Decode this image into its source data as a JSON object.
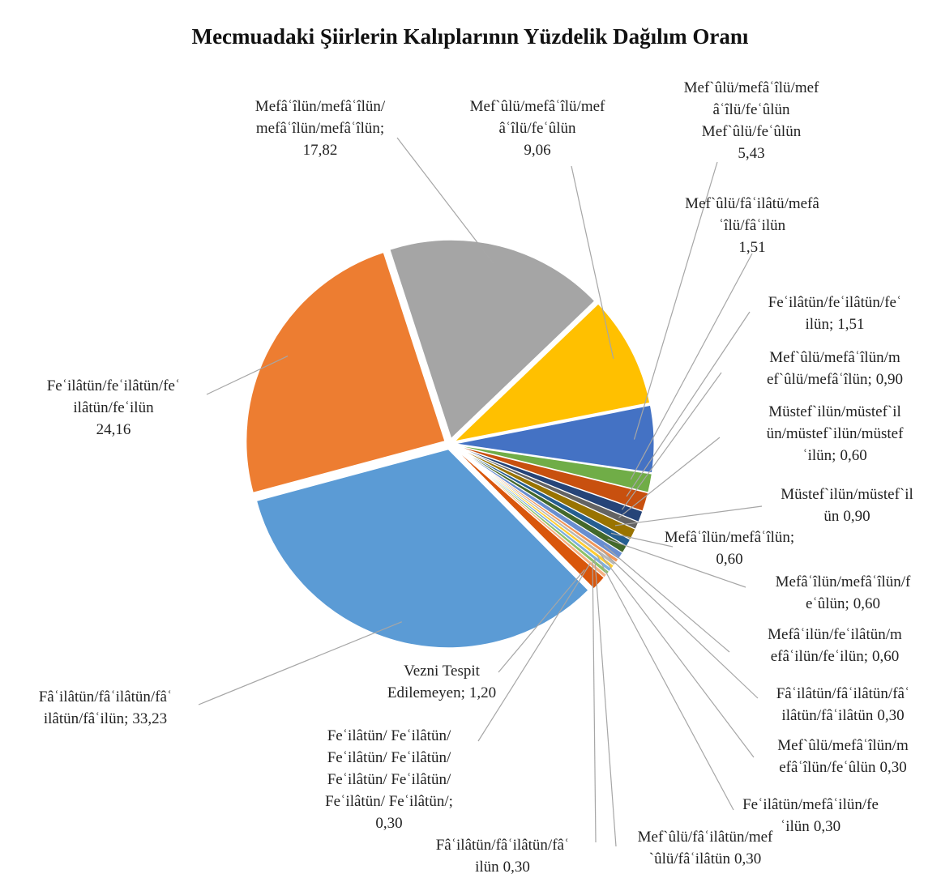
{
  "chart_data": {
    "type": "pie",
    "title": "Mecmuadaki Şiirlerin Kalıplarının Yüzdelik Dağılım Oranı",
    "categories": [
      [
        "Mefâʿîlün/mefâʿîlün/",
        "mefâʿîlün/mefâʿîlün;"
      ],
      [
        "Mef`ûlü/mefâʿîlü/mef",
        "âʿîlü/feʿûlün"
      ],
      [
        "Mef`ûlü/mefâʿîlü/mef",
        "âʿîlü/feʿûlün",
        "Mef`ûlü/feʿûlün"
      ],
      [
        "Mef`ûlü/fâʿilâtü/mefâ",
        "ʿîlü/fâʿilün"
      ],
      [
        "Feʿilâtün/feʿilâtün/feʿ",
        "ilün;"
      ],
      [
        "Mef`ûlü/mefâʿîlün/m",
        "ef`ûlü/mefâʿîlün;"
      ],
      [
        "Müstef`ilün/müstef`il",
        "ün/müstef`ilün/müstef",
        "ʿilün;"
      ],
      [
        "Müstef`ilün/müstef`il",
        "ün"
      ],
      [
        "Mefâʿîlün/mefâʿîlün;"
      ],
      [
        "Mefâʿîlün/mefâʿîlün/f",
        "eʿûlün;"
      ],
      [
        "Mefâʿilün/feʿilâtün/m",
        "efâʿilün/feʿilün;"
      ],
      [
        "Fâʿilâtün/fâʿilâtün/fâʿ",
        "ilâtün/fâʿilâtün"
      ],
      [
        "Mef`ûlü/mefâʿîlün/m",
        "efâʿîlün/feʿûlün"
      ],
      [
        "Feʿilâtün/mefâʿilün/fe",
        "ʿilün"
      ],
      [
        "Mef`ûlü/fâʿilâtün/mef",
        "`ûlü/fâʿilâtün"
      ],
      [
        "Fâʿilâtün/fâʿilâtün/fâʿ",
        "ilün"
      ],
      [
        "Feʿilâtün/ Feʿilâtün/",
        "Feʿilâtün/ Feʿilâtün/",
        "Feʿilâtün/ Feʿilâtün/",
        "Feʿilâtün/ Feʿilâtün/;"
      ],
      [
        "Vezni Tespit",
        "Edilemeyen;"
      ],
      [
        "Fâʿilâtün/fâʿilâtün/fâʿ",
        "ilâtün/fâʿilün;"
      ],
      [
        "Feʿilâtün/feʿilâtün/feʿ",
        "ilâtün/feʿilün"
      ]
    ],
    "values": [
      17.82,
      9.06,
      5.43,
      1.51,
      1.51,
      0.9,
      0.6,
      0.9,
      0.6,
      0.6,
      0.6,
      0.3,
      0.3,
      0.3,
      0.3,
      0.3,
      0.3,
      1.2,
      33.23,
      24.16
    ],
    "value_labels": [
      "17,82",
      "9,06",
      "5,43",
      "1,51",
      "1,51",
      "0,90",
      "0,60",
      "0,90",
      "0,60",
      "0,60",
      "0,60",
      "0,30",
      "0,30",
      "0,30",
      "0,30",
      "0,30",
      "0,30",
      "1,20",
      "33,23",
      "24,16"
    ],
    "colors": [
      "#a5a5a5",
      "#ffc000",
      "#4472c4",
      "#70ad47",
      "#c8500f",
      "#264478",
      "#636363",
      "#997300",
      "#255e91",
      "#43682b",
      "#698ed0",
      "#f1975a",
      "#b7b7b7",
      "#ffcd33",
      "#7cafdd",
      "#8cc168",
      "#f4b183",
      "#d9560b",
      "#5b9bd5",
      "#ed7d31"
    ]
  }
}
